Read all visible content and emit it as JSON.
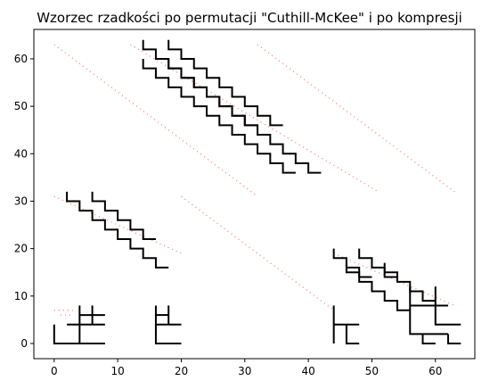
{
  "chart_data": {
    "type": "scatter",
    "title": "Wzorzec rzadkości po permutacji \"Cuthill-McKee\" i po kompresji",
    "xlabel": "",
    "ylabel": "",
    "xlim": [
      -3.2,
      66.2
    ],
    "ylim": [
      -3.2,
      66.2
    ],
    "xticks": [
      0,
      10,
      20,
      30,
      40,
      50,
      60
    ],
    "yticks": [
      0,
      10,
      20,
      30,
      40,
      50,
      60
    ],
    "grid": false,
    "legend": "none",
    "series": [
      {
        "style": "dotted-red",
        "color": "#ff6f6f",
        "segments": [
          [
            [
              0,
              63
            ],
            [
              32,
              31
            ]
          ],
          [
            [
              12,
              63
            ],
            [
              51,
              32
            ]
          ],
          [
            [
              32,
              63
            ],
            [
              63,
              32
            ]
          ],
          [
            [
              0,
              31
            ],
            [
              20,
              19
            ]
          ],
          [
            [
              20,
              31
            ],
            [
              44,
              7
            ]
          ],
          [
            [
              44,
              19
            ],
            [
              63,
              8
            ]
          ],
          [
            [
              0,
              7
            ],
            [
              3,
              7
            ]
          ],
          [
            [
              1,
              6
            ],
            [
              3,
              6
            ]
          ]
        ]
      },
      {
        "style": "solid-black",
        "color": "#000000",
        "staircases": [
          {
            "start": [
              14,
              64
            ],
            "steps": 9
          },
          {
            "start": [
              18,
              64
            ],
            "steps": 9
          },
          {
            "start": [
              14,
              60
            ],
            "steps": 12
          },
          {
            "start": [
              18,
              60
            ],
            "steps": 12
          },
          {
            "start": [
              2,
              32
            ],
            "steps": 8
          },
          {
            "start": [
              6,
              32
            ],
            "steps": 5
          },
          {
            "start": [
              44,
              20
            ],
            "steps": 3
          },
          {
            "start": [
              48,
              20
            ],
            "steps": 3
          },
          {
            "start": [
              46,
              17
            ],
            "steps": 5
          },
          {
            "start": [
              52,
              17
            ],
            "steps": 4
          }
        ],
        "paths": [
          [
            [
              0,
              4
            ],
            [
              0,
              0
            ],
            [
              8,
              0
            ]
          ],
          [
            [
              4,
              0
            ],
            [
              4,
              8
            ]
          ],
          [
            [
              2,
              4
            ],
            [
              8,
              4
            ]
          ],
          [
            [
              4,
              6
            ],
            [
              8,
              6
            ]
          ],
          [
            [
              6,
              4
            ],
            [
              6,
              8
            ]
          ],
          [
            [
              16,
              8
            ],
            [
              16,
              4
            ],
            [
              20,
              4
            ]
          ],
          [
            [
              16,
              6
            ],
            [
              18,
              6
            ]
          ],
          [
            [
              18,
              4
            ],
            [
              18,
              8
            ]
          ],
          [
            [
              16,
              4
            ],
            [
              16,
              0
            ],
            [
              20,
              0
            ]
          ],
          [
            [
              44,
              8
            ],
            [
              44,
              0
            ]
          ],
          [
            [
              44,
              4
            ],
            [
              48,
              4
            ]
          ],
          [
            [
              46,
              4
            ],
            [
              46,
              0
            ],
            [
              48,
              0
            ]
          ],
          [
            [
              56,
              12
            ],
            [
              56,
              2
            ],
            [
              62,
              2
            ]
          ],
          [
            [
              56,
              8
            ],
            [
              62,
              8
            ]
          ],
          [
            [
              58,
              2
            ],
            [
              58,
              0
            ],
            [
              60,
              0
            ]
          ],
          [
            [
              60,
              12
            ],
            [
              60,
              4
            ],
            [
              64,
              4
            ]
          ],
          [
            [
              62,
              2
            ],
            [
              62,
              0
            ],
            [
              64,
              0
            ]
          ]
        ]
      }
    ]
  }
}
